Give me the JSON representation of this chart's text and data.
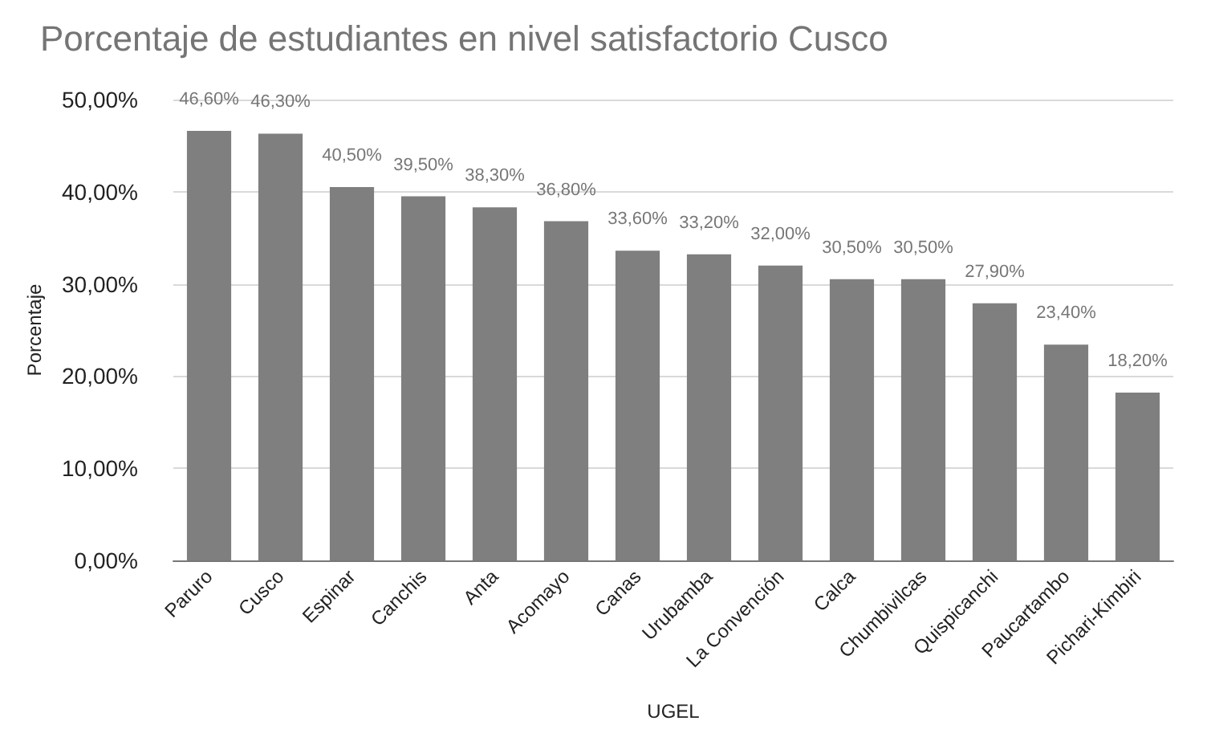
{
  "chart_data": {
    "type": "bar",
    "title": "Porcentaje de estudiantes en nivel satisfactorio Cusco",
    "xlabel": "UGEL",
    "ylabel": "Porcentaje",
    "categories": [
      "Paruro",
      "Cusco",
      "Espinar",
      "Canchis",
      "Anta",
      "Acomayo",
      "Canas",
      "Urubamba",
      "La Convención",
      "Calca",
      "Chumbivilcas",
      "Quispicanchi",
      "Paucartambo",
      "Pichari-Kimbiri"
    ],
    "values": [
      46.6,
      46.3,
      40.5,
      39.5,
      38.3,
      36.8,
      33.6,
      33.2,
      32.0,
      30.5,
      30.5,
      27.9,
      23.4,
      18.2
    ],
    "value_labels": [
      "46,60%",
      "46,30%",
      "40,50%",
      "39,50%",
      "38,30%",
      "36,80%",
      "33,60%",
      "33,20%",
      "32,00%",
      "30,50%",
      "30,50%",
      "27,90%",
      "23,40%",
      "18,20%"
    ],
    "color": "#7f7f7f",
    "ylim": [
      0,
      50
    ],
    "yticks": [
      {
        "value": 0,
        "label": "0,00%"
      },
      {
        "value": 10,
        "label": "10,00%"
      },
      {
        "value": 20,
        "label": "20,00%"
      },
      {
        "value": 30,
        "label": "30,00%"
      },
      {
        "value": 40,
        "label": "40,00%"
      },
      {
        "value": 50,
        "label": "50,00%"
      }
    ],
    "grid": "y"
  }
}
